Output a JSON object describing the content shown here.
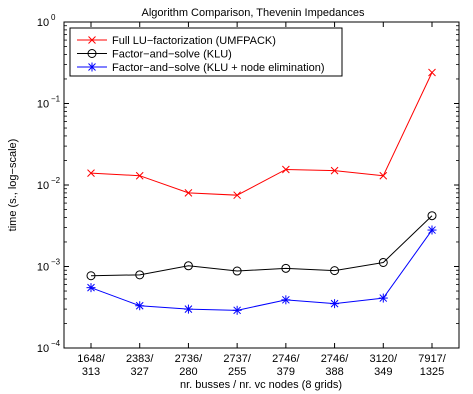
{
  "chart_data": {
    "type": "line",
    "title": "Algorithm Comparison, Thevenin Impedances",
    "xlabel": "nr. busses / nr. vc nodes (8 grids)",
    "ylabel": "time (s., log−scale)",
    "yscale": "log",
    "ylim": [
      0.0001,
      1
    ],
    "y_ticks": [
      {
        "base": "10",
        "exp": "−4",
        "value": 0.0001
      },
      {
        "base": "10",
        "exp": "−3",
        "value": 0.001
      },
      {
        "base": "10",
        "exp": "−2",
        "value": 0.01
      },
      {
        "base": "10",
        "exp": "−1",
        "value": 0.1
      },
      {
        "base": "10",
        "exp": "0",
        "value": 1
      }
    ],
    "categories": [
      {
        "top": "1648/",
        "bottom": "313"
      },
      {
        "top": "2383/",
        "bottom": "327"
      },
      {
        "top": "2736/",
        "bottom": "280"
      },
      {
        "top": "2737/",
        "bottom": "255"
      },
      {
        "top": "2746/",
        "bottom": "379"
      },
      {
        "top": "2746/",
        "bottom": "388"
      },
      {
        "top": "3120/",
        "bottom": "349"
      },
      {
        "top": "7917/",
        "bottom": "1325"
      }
    ],
    "grid": false,
    "legend": "top-left",
    "series": [
      {
        "name": "Full LU−factorization (UMFPACK)",
        "color": "#ff0000",
        "marker": "x",
        "values": [
          0.014,
          0.013,
          0.008,
          0.0075,
          0.0155,
          0.015,
          0.013,
          0.24
        ]
      },
      {
        "name": "Factor−and−solve (KLU)",
        "color": "#000000",
        "marker": "o",
        "values": [
          0.00077,
          0.00079,
          0.00102,
          0.00088,
          0.00095,
          0.00089,
          0.00112,
          0.0042
        ]
      },
      {
        "name": "Factor−and−solve (KLU + node elimination)",
        "color": "#0000ff",
        "marker": "*",
        "values": [
          0.00055,
          0.00033,
          0.0003,
          0.00029,
          0.00039,
          0.00035,
          0.00041,
          0.0028
        ]
      }
    ]
  }
}
